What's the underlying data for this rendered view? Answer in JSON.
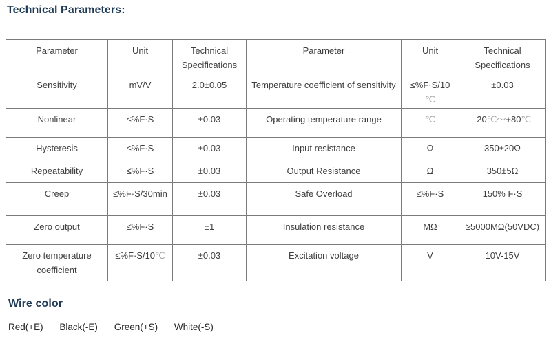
{
  "title": "Technical Parameters:",
  "table": {
    "headers": [
      "Parameter",
      "Unit",
      "Technical Specifications",
      "Parameter",
      "Unit",
      "Technical Specifications"
    ],
    "rows": [
      {
        "cells": [
          "Sensitivity",
          "mV/V",
          "2.0±0.05",
          "Temperature coefficient of sensitivity",
          [
            {
              "text": "≤%F·S/10"
            },
            {
              "text": "℃",
              "muted": true,
              "block": true
            }
          ],
          "±0.03"
        ]
      },
      {
        "cells": [
          "Nonlinear",
          "≤%F·S",
          "±0.03",
          "Operating temperature range",
          [
            {
              "text": "℃",
              "muted": true
            }
          ],
          [
            {
              "text": "-20"
            },
            {
              "text": "℃",
              "muted": true
            },
            {
              "text": "～",
              "muted": true
            },
            {
              "text": "+80"
            },
            {
              "text": "℃",
              "muted": true
            }
          ]
        ]
      },
      {
        "cells": [
          "Hysteresis",
          "≤%F·S",
          "±0.03",
          "Input resistance",
          "Ω",
          "350±20Ω"
        ]
      },
      {
        "cells": [
          "Repeatability",
          "≤%F·S",
          "±0.03",
          "Output Resistance",
          "Ω",
          "350±5Ω"
        ]
      },
      {
        "cells": [
          "Creep",
          "≤%F·S/30min",
          "±0.03",
          "Safe Overload",
          "≤%F·S",
          "150% F·S"
        ]
      },
      {
        "cells": [
          "Zero output",
          "≤%F·S",
          "±1",
          "Insulation resistance",
          "MΩ",
          "≥5000MΩ(50VDC)"
        ]
      },
      {
        "cells": [
          "Zero temperature coefficient",
          [
            {
              "text": "≤%F·S/10"
            },
            {
              "text": "℃",
              "muted": true
            }
          ],
          "±0.03",
          "Excitation voltage",
          "V",
          "10V-15V"
        ]
      }
    ]
  },
  "wire": {
    "heading": "Wire color",
    "items": [
      "Red(+E)",
      "Black(-E)",
      "Green(+S)",
      "White(-S)"
    ]
  },
  "colors": {
    "heading_navy": "#1f3a55",
    "body_text": "#3f3f3f",
    "muted_symbol": "#a6a6a6",
    "table_border": "#7b7b7b"
  }
}
